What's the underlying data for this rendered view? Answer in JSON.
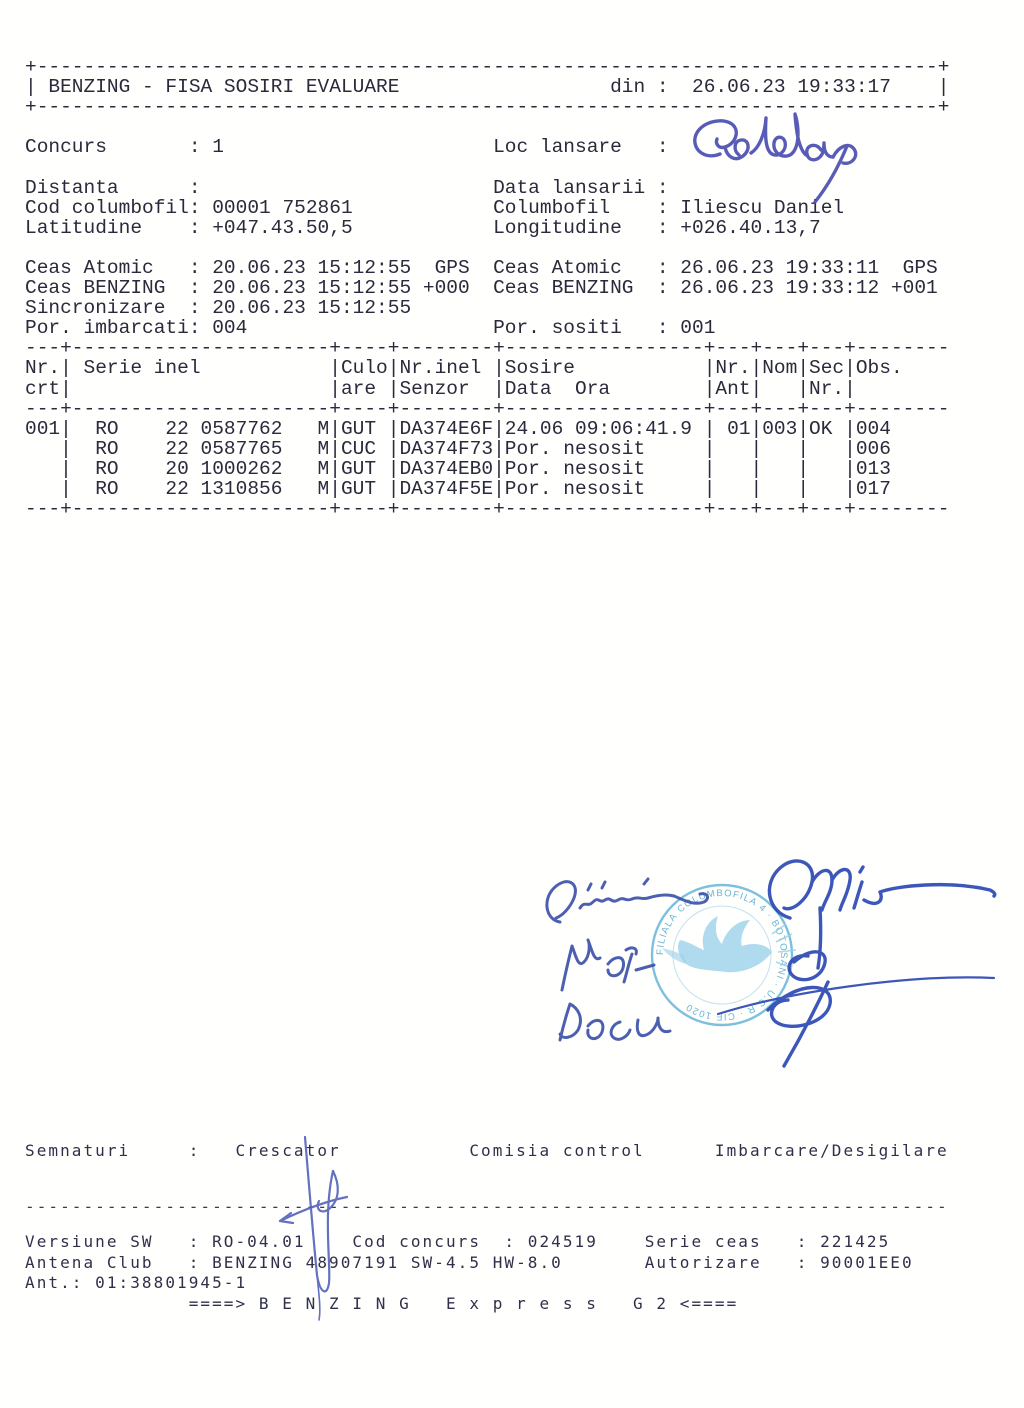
{
  "document_type": "BENZING - FISA SOSIRI EVALUARE",
  "header_box": {
    "title": "BENZING - FISA SOSIRI EVALUARE",
    "din_label": "din :",
    "din_value": "26.06.23 19:33:17"
  },
  "fields": {
    "concurs": "1",
    "distanta": "",
    "cod_columbofil": "00001 752861",
    "latitudine": "+047.43.50,5",
    "loc_lansare": "",
    "data_lansarii": "",
    "columbofil": "Iliescu Daniel",
    "longitudine": "+026.40.13,7",
    "ceas_atomic_left": "20.06.23 15:12:55  GPS",
    "ceas_benzing_left": "20.06.23 15:12:55 +000",
    "sincronizare": "20.06.23 15:12:55",
    "por_imbarcati": "004",
    "ceas_atomic_right": "26.06.23 19:33:11  GPS",
    "ceas_benzing_right": "26.06.23 19:33:12 +001",
    "por_sositi": "001"
  },
  "table": {
    "columns": [
      "Nr. crt",
      "Serie inel",
      "Culoare",
      "Nr.inel Senzor",
      "Sosire Data  Ora",
      "Nr. Ant",
      "Nom",
      "Sec Nr.",
      "Obs."
    ],
    "rows": [
      {
        "nr_crt": "001",
        "serie_inel": "RO 22 0587762 M",
        "culoare": "GUT",
        "nr_inel_senzor": "DA374E6F",
        "sosire": "24.06 09:06:41.9",
        "nr_ant": "01",
        "nom": "003",
        "sec_nr": "OK",
        "obs": "004"
      },
      {
        "nr_crt": "",
        "serie_inel": "RO 22 0587765 M",
        "culoare": "CUC",
        "nr_inel_senzor": "DA374F73",
        "sosire": "Por. nesosit",
        "nr_ant": "",
        "nom": "",
        "sec_nr": "",
        "obs": "006"
      },
      {
        "nr_crt": "",
        "serie_inel": "RO 20 1000262 M",
        "culoare": "GUT",
        "nr_inel_senzor": "DA374EB0",
        "sosire": "Por. nesosit",
        "nr_ant": "",
        "nom": "",
        "sec_nr": "",
        "obs": "013"
      },
      {
        "nr_crt": "",
        "serie_inel": "RO 22 1310856 M",
        "culoare": "GUT",
        "nr_inel_senzor": "DA374F5E",
        "sosire": "Por. nesosit",
        "nr_ant": "",
        "nom": "",
        "sec_nr": "",
        "obs": "017"
      }
    ]
  },
  "signature_labels": [
    "Semnaturi",
    "Crescator",
    "Comisia control",
    "Imbarcare/Desigilare"
  ],
  "footer_fields": {
    "versiune_sw": "RO-04.01",
    "cod_concurs": "024519",
    "serie_ceas": "221425",
    "antena_club": "BENZING 48907191 SW-4.5 HW-8.0",
    "autorizare": "90001EE0",
    "ant": "01:38801945-1",
    "banner": "====> B E N Z I N G   E x p r e s s   G 2 <===="
  },
  "handwriting": {
    "loc_lansare_value": "Goldap",
    "names_column": [
      "Chiriac",
      "Mot-",
      "Rocu"
    ],
    "ink_blue": "#3e52aa",
    "ink_dark_blue": "#2c49b4",
    "ink_violet": "#4a4fb0",
    "crescator_signature_ink": "#5362ba"
  },
  "stamp": {
    "shape": "round",
    "ink": "#5fb0d6",
    "emblem": "dove",
    "ring_text": "FILIALA COLUMBOFILA 4 BOTOSANI U.C.R CIF 1020"
  },
  "printout": {
    "top_lines": [
      "+-----------------------------------------------------------------------------+",
      "| BENZING - FISA SOSIRI EVALUARE                  din :  26.06.23 19:33:17    |",
      "+-----------------------------------------------------------------------------+",
      "",
      "Concurs       : 1                       Loc lansare   :",
      "",
      "Distanta      :                         Data lansarii :",
      "Cod columbofil: 00001 752861            Columbofil    : Iliescu Daniel",
      "Latitudine    : +047.43.50,5            Longitudine   : +026.40.13,7",
      "",
      "Ceas Atomic   : 20.06.23 15:12:55  GPS  Ceas Atomic   : 26.06.23 19:33:11  GPS",
      "Ceas BENZING  : 20.06.23 15:12:55 +000  Ceas BENZING  : 26.06.23 19:33:12 +001",
      "Sincronizare  : 20.06.23 15:12:55",
      "Por. imbarcati: 004                     Por. sositi   : 001",
      "---+----------------------+----+--------+-----------------+---+---+---+--------",
      "Nr.| Serie inel           |Culo|Nr.inel |Sosire           |Nr.|Nom|Sec|Obs.    ",
      "crt|                      |are |Senzor  |Data  Ora        |Ant|   |Nr.|        ",
      "---+----------------------+----+--------+-----------------+---+---+---+--------",
      "001|  RO    22 0587762   M|GUT |DA374E6F|24.06 09:06:41.9 | 01|003|OK |004     ",
      "   |  RO    22 0587765   M|CUC |DA374F73|Por. nesosit     |   |   |   |006     ",
      "   |  RO    20 1000262   M|GUT |DA374EB0|Por. nesosit     |   |   |   |013     ",
      "   |  RO    22 1310856   M|GUT |DA374F5E|Por. nesosit     |   |   |   |017     ",
      "---+----------------------+----+--------+-----------------+---+---+---+--------"
    ],
    "signature_line": [
      "Semnaturi     :   Crescator           Comisia control      Imbarcare/Desigilare"
    ],
    "divider_line": [
      "-------------------------------------------------------------------------------"
    ],
    "footer_lines": [
      "Versiune SW   : RO-04.01    Cod concurs  : 024519    Serie ceas   : 221425",
      "Antena Club   : BENZING 48907191 SW-4.5 HW-8.0       Autorizare   : 90001EE0",
      "Ant.: 01:38801945-1",
      "              ====> B E N Z I N G   E x p r e s s   G 2 <===="
    ]
  }
}
